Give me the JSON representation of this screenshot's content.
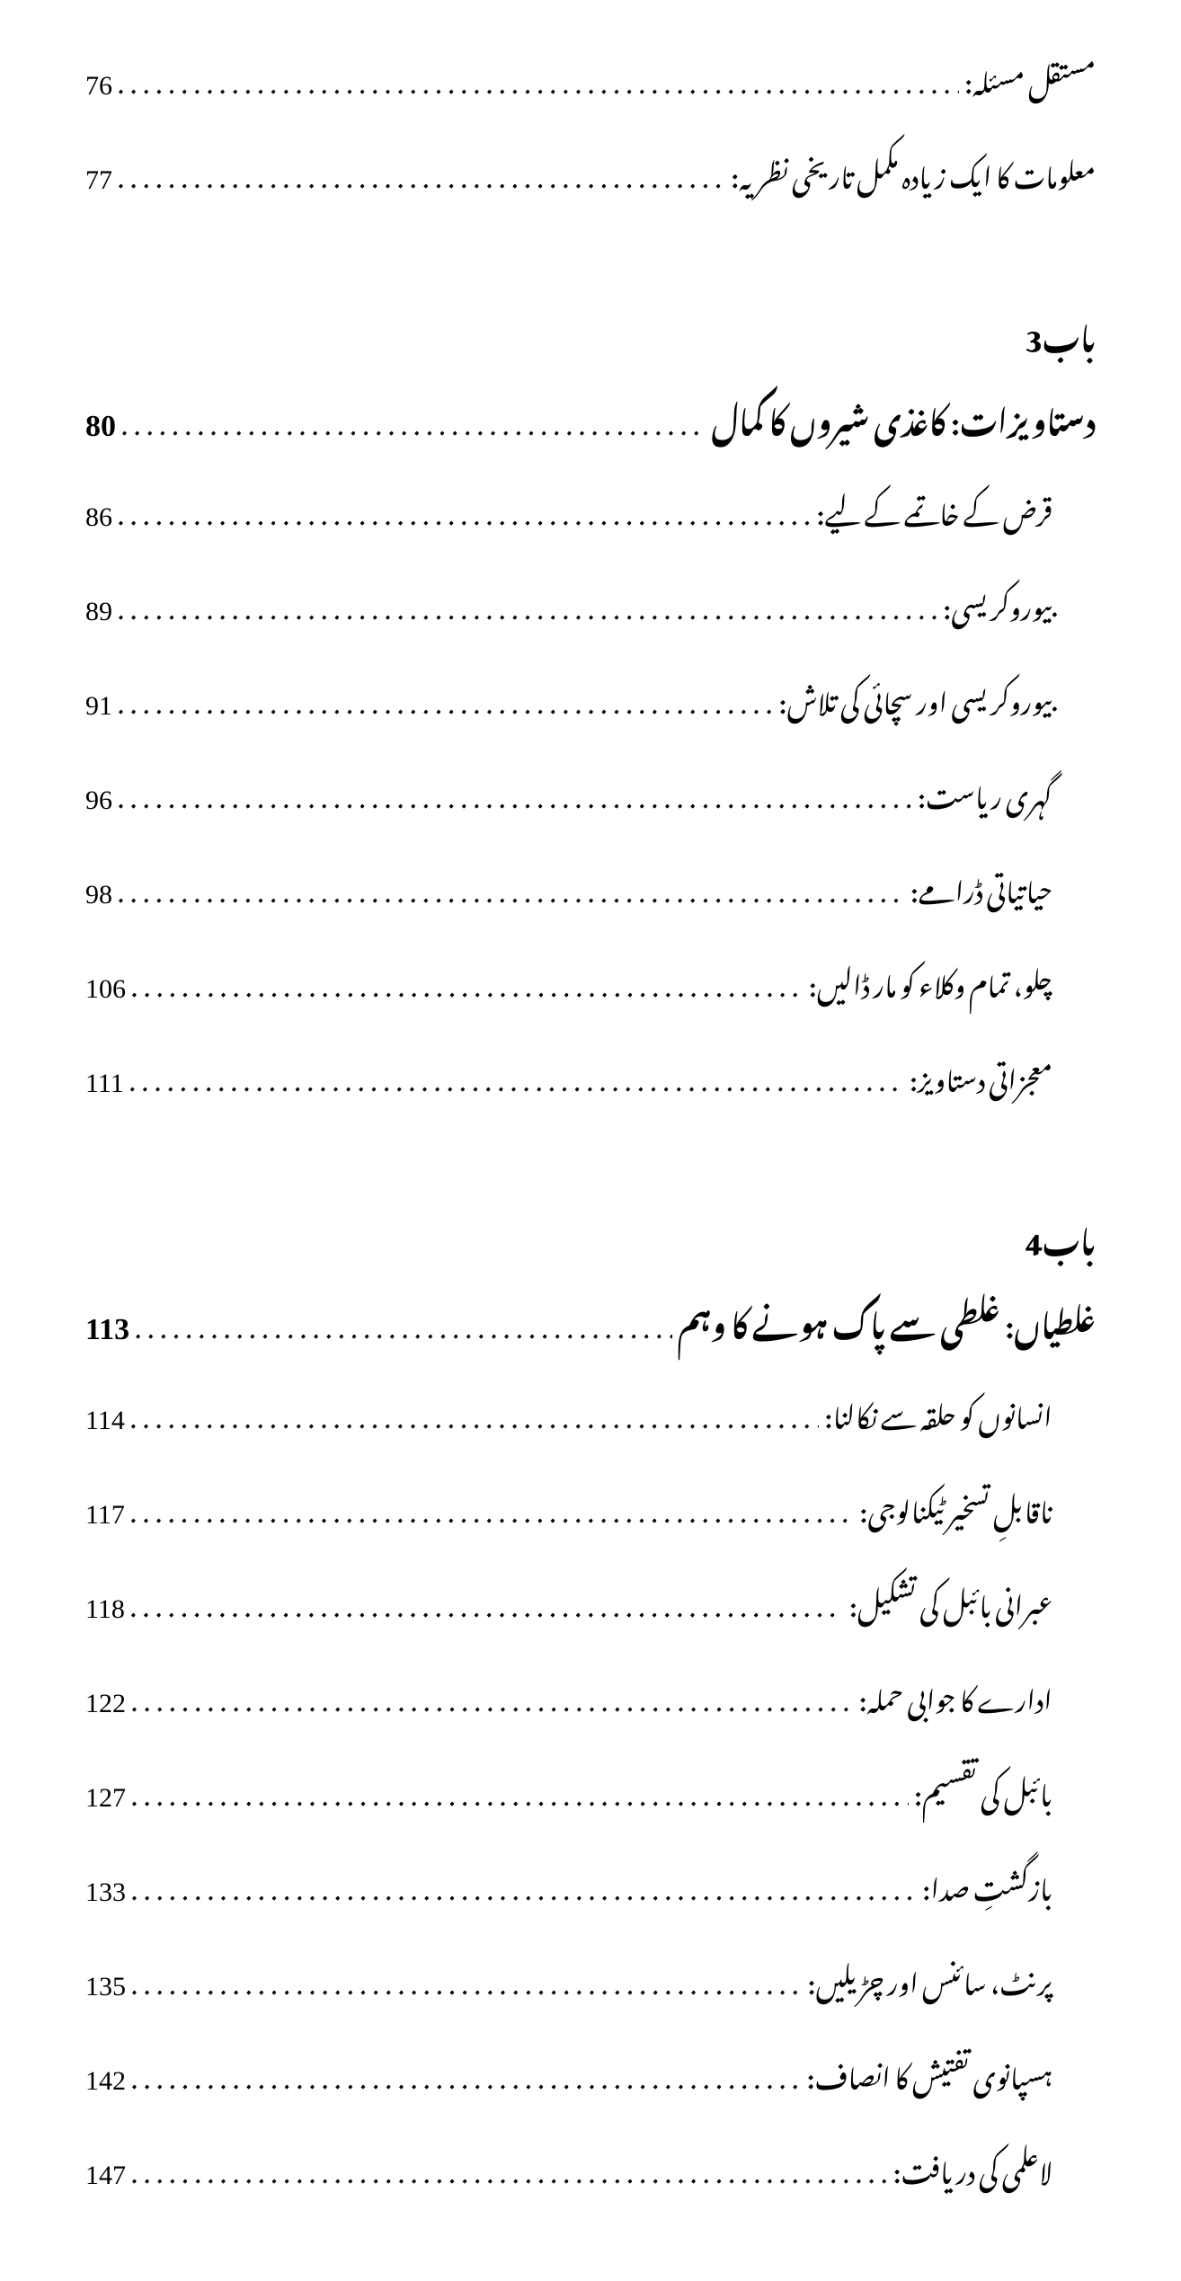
{
  "colors": {
    "background": "#ffffff",
    "text": "#000000"
  },
  "typography": {
    "body_font": "Noto Nastaliq Urdu",
    "page_num_font": "Times New Roman",
    "entry_fontsize": 30,
    "chapter_title_fontsize": 34,
    "chapter_head_fontsize": 34
  },
  "top_entries": [
    {
      "label": "مستقل مسئلہ:",
      "page": "76"
    },
    {
      "label": "معلومات کا ایک زیادہ مکمل تاریخی نظریہ:",
      "page": "77"
    }
  ],
  "chapter3": {
    "head": "باب3",
    "title": "دستاویزات: کاغذی شیروں کا کمال",
    "title_page": "80",
    "entries": [
      {
        "label": "قرض کے خاتمے کے لیے:",
        "page": "86"
      },
      {
        "label": "بیوروکریسی:",
        "page": "89"
      },
      {
        "label": "بیوروکریسی اور سچائی کی تلاش:",
        "page": "91"
      },
      {
        "label": "گہری ریاست:",
        "page": "96"
      },
      {
        "label": "حیاتیاتی ڈرامے:",
        "page": "98"
      },
      {
        "label": "چلو، تمام وکلاء کو مار ڈالیں:",
        "page": "106"
      },
      {
        "label": "معجزاتی دستاویز:",
        "page": "111"
      }
    ]
  },
  "chapter4": {
    "head": "باب4",
    "title": "غلطیاں: غلطی سے پاک ہونے کا وہم",
    "title_page": "113",
    "entries": [
      {
        "label": "انسانوں کو حلقہ سے نکالنا:",
        "page": "114"
      },
      {
        "label": "ناقابلِ تسخیر ٹیکنالوجی:",
        "page": "117"
      },
      {
        "label": "عبرانی بائبل کی تشکیل:",
        "page": "118"
      },
      {
        "label": "ادارے کا جوابی حملہ:",
        "page": "122"
      },
      {
        "label": "بائبل کی تقسیم:",
        "page": "127"
      },
      {
        "label": "بازگشتِ صدا:",
        "page": "133"
      },
      {
        "label": "پرنٹ، سائنس اور چڑیلیں:",
        "page": "135"
      },
      {
        "label": "ہسپانوی تفتیش کا انصاف:",
        "page": "142"
      },
      {
        "label": "لاعلمی کی دریافت:",
        "page": "147"
      }
    ]
  },
  "dots_fill": ". . . . . . . . . . . . . . . . . . . . . . . . . . . . . . . . . . . . . . . . . . . . . . . . . . . . . . . . . . . . . . . . . . . . . . . . . . . . . . . . . . . . . . . . . . . . . . . . . . . . . . . . . . . . . . . . . . . . . . . . . . . . . . . . . . . . . ."
}
